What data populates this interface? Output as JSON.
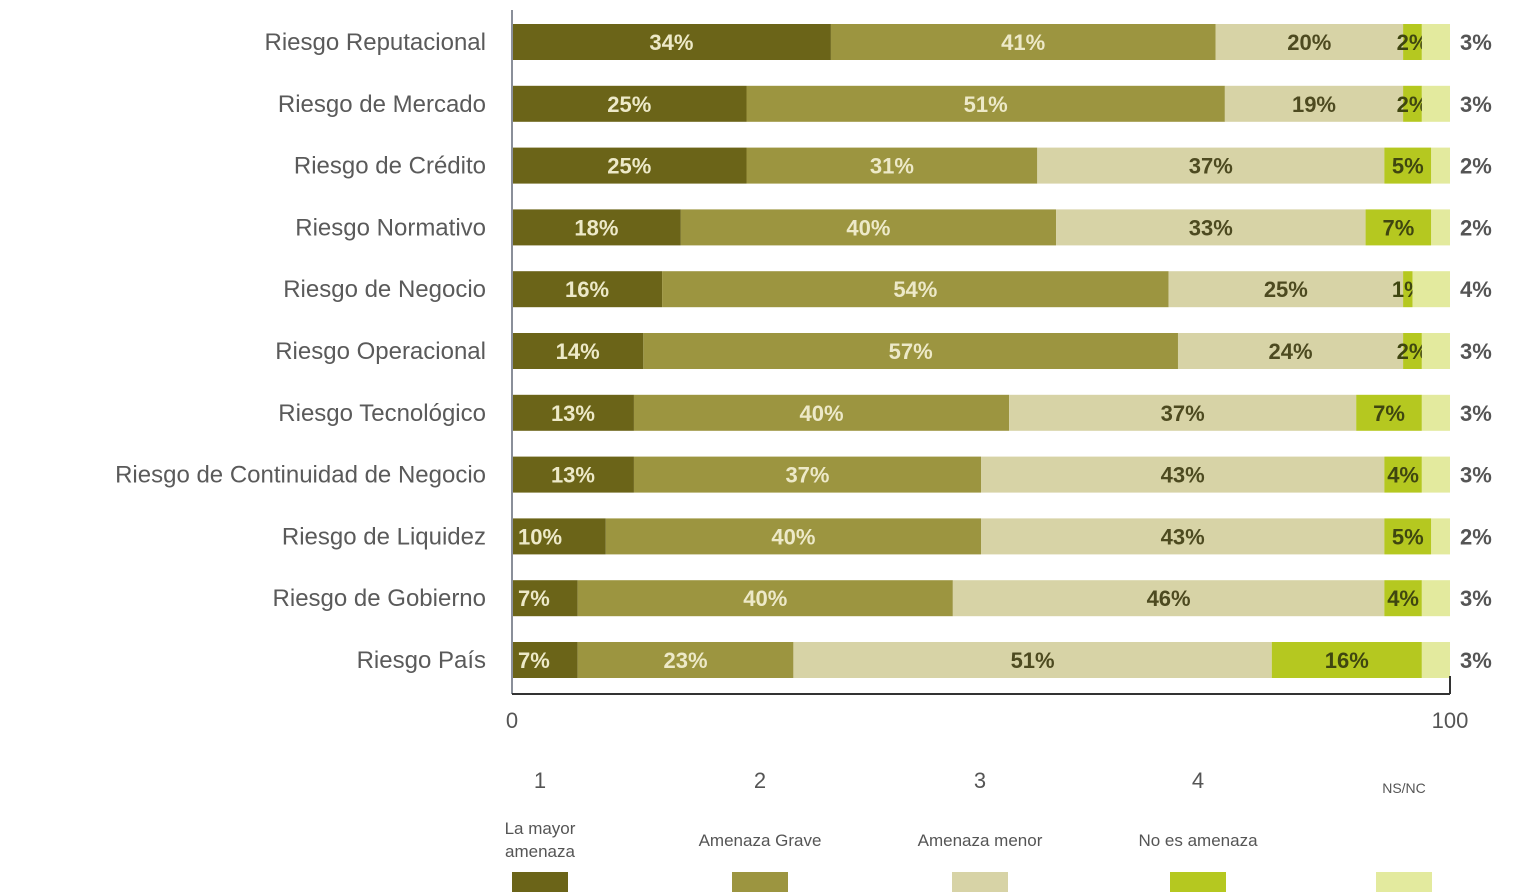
{
  "chart_data": {
    "type": "bar",
    "orientation": "horizontal",
    "stacked": true,
    "categories": [
      "Riesgo Reputacional",
      "Riesgo de Mercado",
      "Riesgo de Crédito",
      "Riesgo Normativo",
      "Riesgo de Negocio",
      "Riesgo Operacional",
      "Riesgo Tecnológico",
      "Riesgo de Continuidad de Negocio",
      "Riesgo de Liquidez",
      "Riesgo de Gobierno",
      "Riesgo País"
    ],
    "series": [
      {
        "key": "1",
        "name": "La mayor amenaza",
        "color": "#6b6418",
        "values": [
          34,
          25,
          25,
          18,
          16,
          14,
          13,
          13,
          10,
          7,
          7
        ],
        "labels": [
          "34%",
          "25%",
          "25%",
          "18%",
          "16%",
          "14%",
          "13%",
          "13%",
          "10%",
          "7%",
          "7%"
        ]
      },
      {
        "key": "2",
        "name": "Amenaza Grave",
        "color": "#9c9540",
        "values": [
          41,
          51,
          31,
          40,
          54,
          57,
          40,
          37,
          40,
          40,
          23
        ],
        "labels": [
          "41%",
          "51%",
          "31%",
          "40%",
          "54%",
          "57%",
          "40%",
          "37%",
          "40%",
          "40%",
          "23%"
        ]
      },
      {
        "key": "3",
        "name": "Amenaza menor",
        "color": "#d7d3a6",
        "values": [
          20,
          19,
          37,
          33,
          25,
          24,
          37,
          43,
          43,
          46,
          51
        ],
        "labels": [
          "20%",
          "19%",
          "37%",
          "33%",
          "25%",
          "24%",
          "37%",
          "43%",
          "43%",
          "46%",
          "51%"
        ]
      },
      {
        "key": "4",
        "name": "No es amenaza",
        "color": "#b5c820",
        "values": [
          2,
          2,
          5,
          7,
          1,
          2,
          7,
          4,
          5,
          4,
          16
        ],
        "labels": [
          "2%",
          "2%",
          "5%",
          "7%",
          "1%",
          "2%",
          "7%",
          "4%",
          "5%",
          "4%",
          "16%"
        ]
      },
      {
        "key": "NS/NC",
        "name": "",
        "color": "#e3ea9e",
        "values": [
          3,
          3,
          2,
          2,
          4,
          3,
          3,
          3,
          2,
          3,
          3
        ],
        "labels": [
          "3%",
          "3%",
          "2%",
          "2%",
          "4%",
          "3%",
          "3%",
          "3%",
          "2%",
          "3%",
          "3%"
        ]
      }
    ],
    "xlim": [
      0,
      100
    ],
    "x_ticks": [
      "0",
      "100"
    ],
    "legend": {
      "placement": "bottom",
      "numbers": [
        "1",
        "2",
        "3",
        "4",
        "NS/NC"
      ],
      "texts": [
        "La mayor amenaza",
        "Amenaza Grave",
        "Amenaza menor",
        "No es amenaza",
        ""
      ],
      "colors": [
        "#6b6418",
        "#9c9540",
        "#d7d3a6",
        "#b5c820",
        "#e3ea9e"
      ]
    },
    "title": "",
    "xlabel": "",
    "ylabel": ""
  }
}
